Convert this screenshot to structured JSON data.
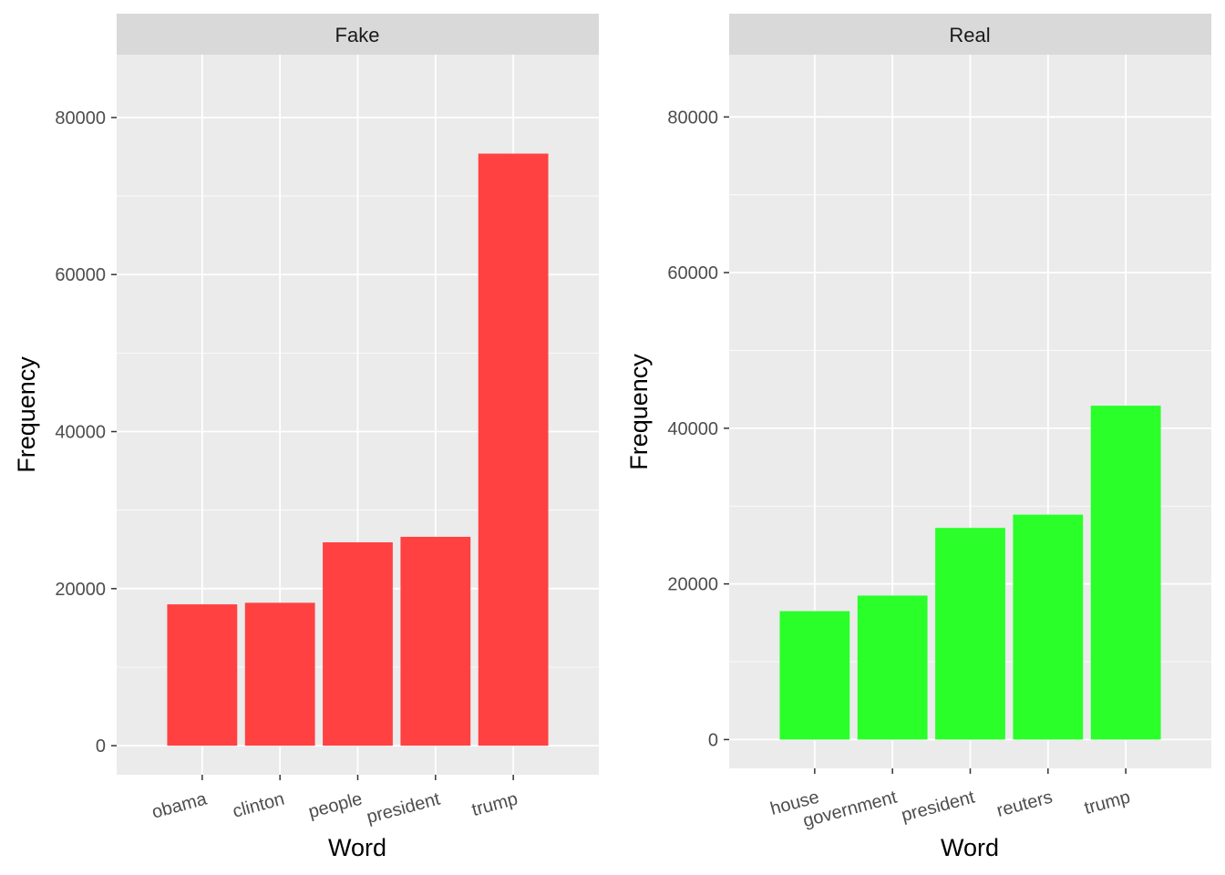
{
  "chart_data": [
    {
      "type": "bar",
      "facet": "Fake",
      "categories": [
        "obama",
        "clinton",
        "people",
        "president",
        "trump"
      ],
      "values": [
        18000,
        18200,
        25900,
        26600,
        75400
      ],
      "xlabel": "Word",
      "ylabel": "Frequency",
      "yticks": [
        0,
        20000,
        40000,
        60000,
        80000
      ],
      "ytick_labels": [
        "0",
        "20000",
        "40000",
        "60000",
        "80000"
      ],
      "ylim": [
        -3700,
        88000
      ],
      "grid": true,
      "colors": {
        "bar": "#ff4141",
        "panel": "#ebebeb",
        "strip": "#d9d9d9",
        "grid": "#ffffff"
      }
    },
    {
      "type": "bar",
      "facet": "Real",
      "categories": [
        "house",
        "government",
        "president",
        "reuters",
        "trump"
      ],
      "values": [
        16500,
        18500,
        27200,
        28900,
        42900
      ],
      "xlabel": "Word",
      "ylabel": "Frequency",
      "yticks": [
        0,
        20000,
        40000,
        60000,
        80000
      ],
      "ytick_labels": [
        "0",
        "20000",
        "40000",
        "60000",
        "80000"
      ],
      "ylim": [
        -3700,
        88000
      ],
      "grid": true,
      "colors": {
        "bar": "#2aff2a",
        "panel": "#ebebeb",
        "strip": "#d9d9d9",
        "grid": "#ffffff"
      }
    }
  ]
}
